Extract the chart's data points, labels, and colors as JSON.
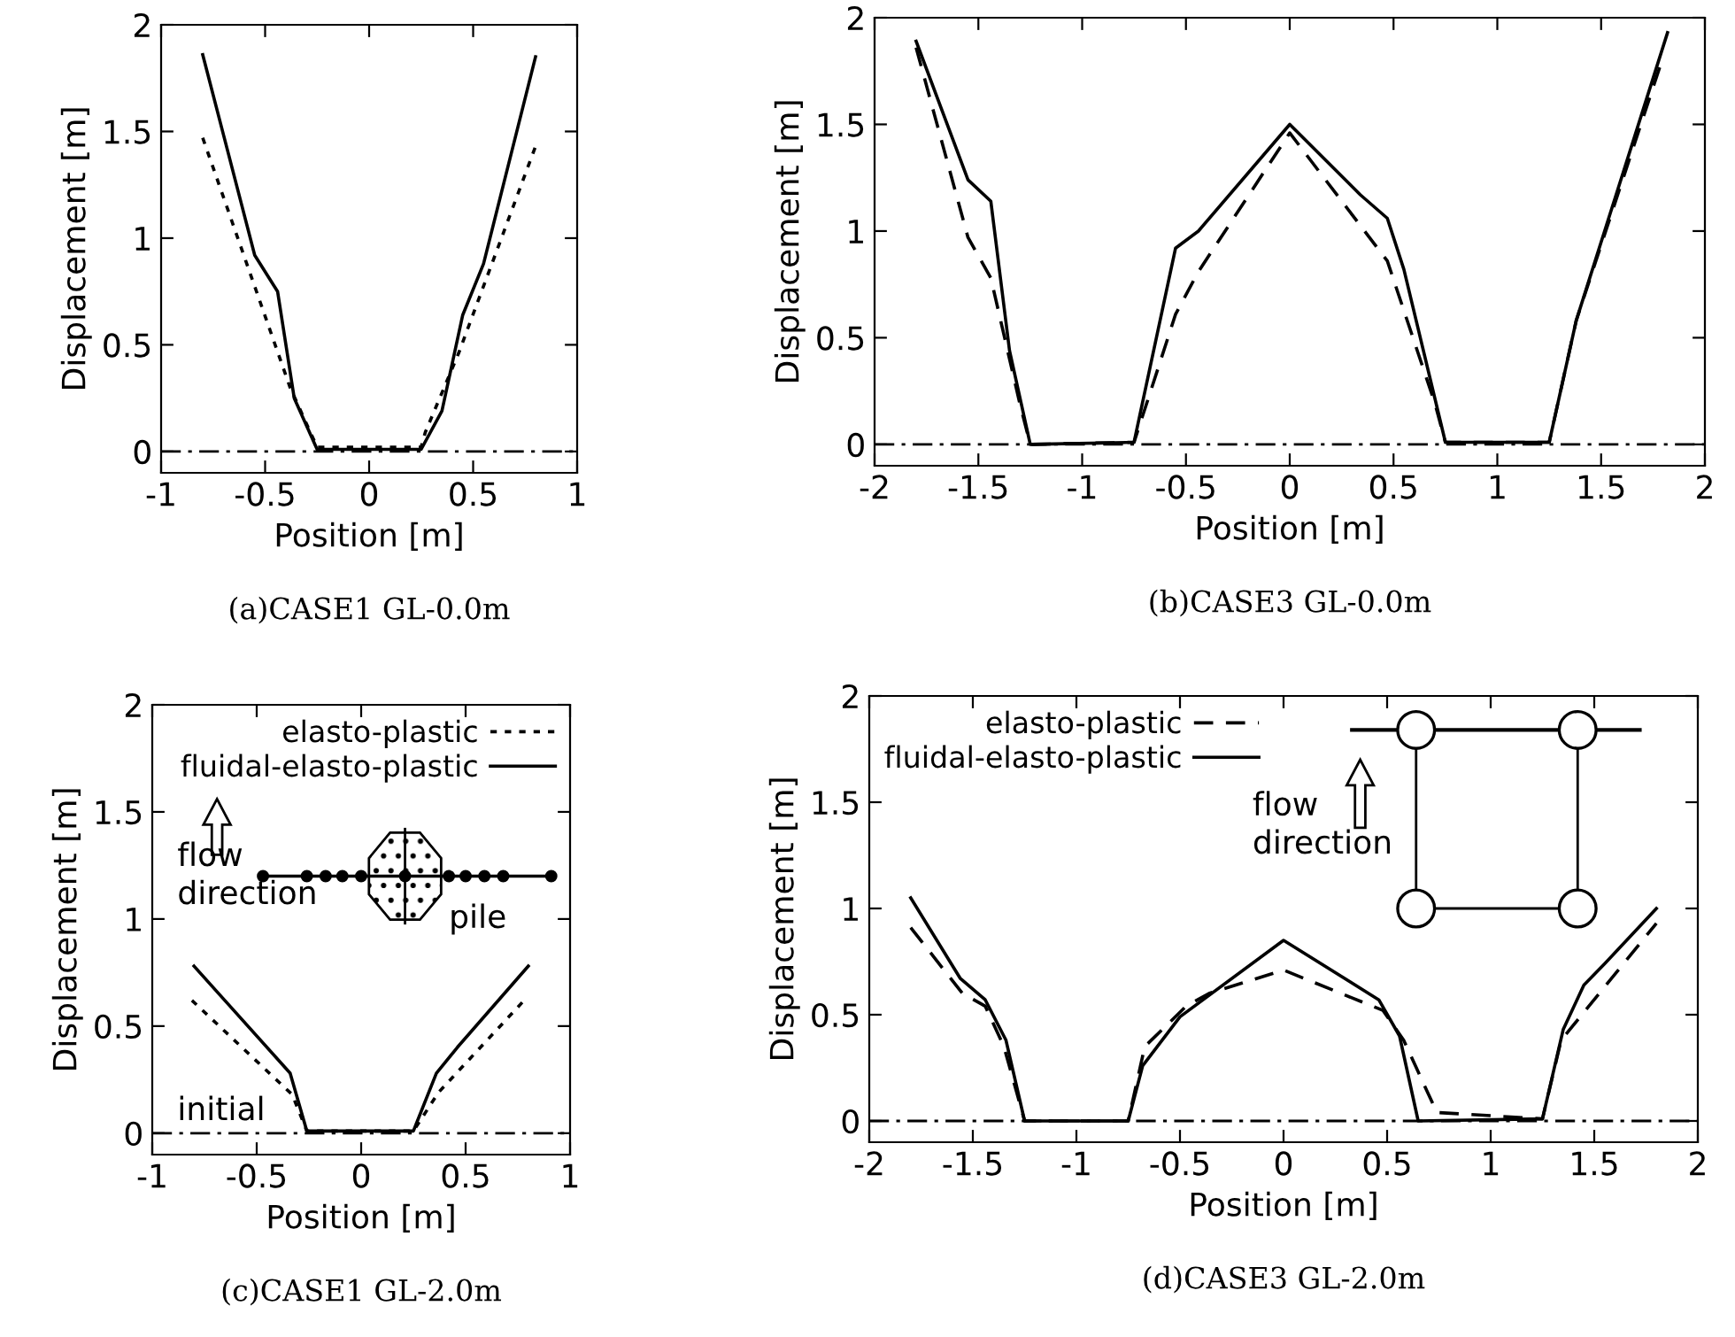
{
  "chart_data": [
    {
      "type": "line",
      "title": "(a)CASE1 GL-0.0m",
      "xlabel": "Position [m]",
      "ylabel": "Displacement [m]",
      "xlim": [
        -1,
        1
      ],
      "xticks": [
        -1,
        -0.5,
        0,
        0.5,
        1
      ],
      "ylim": [
        -0.1,
        2
      ],
      "yticks": [
        0,
        0.5,
        1,
        1.5,
        2
      ],
      "grid": false,
      "legend": false,
      "series": [
        {
          "color": "#000000",
          "line_style": "solid",
          "x": [
            -0.8,
            -0.55,
            -0.44,
            -0.36,
            -0.25,
            0.25,
            0.35,
            0.45,
            0.55,
            0.8
          ],
          "values": [
            1.86,
            0.92,
            0.75,
            0.25,
            0.01,
            0.01,
            0.19,
            0.64,
            0.88,
            1.85
          ]
        },
        {
          "color": "#000000",
          "line_style": "dotted",
          "x": [
            -0.8,
            -0.38,
            -0.25,
            0.25,
            0.27,
            0.43,
            0.8
          ],
          "values": [
            1.47,
            0.3,
            0.02,
            0.02,
            0.09,
            0.46,
            1.43
          ]
        }
      ],
      "ref_lines": [
        {
          "axis": "y",
          "value": 0,
          "color": "#000000",
          "line_style": "dashdot"
        }
      ]
    },
    {
      "type": "line",
      "title": "(b)CASE3 GL-0.0m",
      "xlabel": "Position [m]",
      "ylabel": "Displacement [m]",
      "xlim": [
        -2,
        2
      ],
      "xticks": [
        -2,
        -1.5,
        -1,
        -0.5,
        0,
        0.5,
        1,
        1.5,
        2
      ],
      "ylim": [
        -0.1,
        2
      ],
      "yticks": [
        0,
        0.5,
        1,
        1.5,
        2
      ],
      "grid": false,
      "legend": false,
      "series": [
        {
          "color": "#000000",
          "line_style": "solid",
          "x": [
            -1.8,
            -1.55,
            -1.44,
            -1.35,
            -1.25,
            -0.75,
            -0.55,
            -0.44,
            0,
            0.34,
            0.47,
            0.55,
            0.75,
            1.25,
            1.38,
            1.82
          ],
          "values": [
            1.89,
            1.24,
            1.14,
            0.44,
            0,
            0.01,
            0.92,
            1.0,
            1.5,
            1.17,
            1.06,
            0.82,
            0.01,
            0.01,
            0.58,
            1.93
          ]
        },
        {
          "color": "#000000",
          "line_style": "dashed",
          "x": [
            -1.8,
            -1.55,
            -1.44,
            -1.3,
            -1.25,
            -0.75,
            -0.55,
            -0.44,
            0,
            0.47,
            0.7,
            0.75,
            1.25,
            1.38,
            1.8
          ],
          "values": [
            1.86,
            0.97,
            0.78,
            0.19,
            0,
            0.01,
            0.61,
            0.81,
            1.46,
            0.86,
            0.19,
            0.01,
            0.01,
            0.58,
            1.82
          ]
        }
      ],
      "ref_lines": [
        {
          "axis": "y",
          "value": 0,
          "color": "#000000",
          "line_style": "dashdot"
        }
      ]
    },
    {
      "type": "line",
      "title": "(c)CASE1 GL-2.0m",
      "xlabel": "Position [m]",
      "ylabel": "Displacement [m]",
      "xlim": [
        -1,
        1
      ],
      "xticks": [
        -1,
        -0.5,
        0,
        0.5,
        1
      ],
      "ylim": [
        -0.1,
        2
      ],
      "yticks": [
        0,
        0.5,
        1,
        1.5,
        2
      ],
      "grid": false,
      "legend": "top right",
      "series": [
        {
          "name": "elasto-plastic",
          "color": "#000000",
          "line_style": "dotted",
          "x": [
            -0.81,
            -0.33,
            -0.26,
            0.25,
            0.37,
            0.78
          ],
          "values": [
            0.62,
            0.18,
            0.01,
            0.01,
            0.19,
            0.62
          ]
        },
        {
          "name": "fluidal-elasto-plastic",
          "color": "#000000",
          "line_style": "solid",
          "x": [
            -0.8,
            -0.34,
            -0.26,
            0.25,
            0.36,
            0.46,
            0.8
          ],
          "values": [
            0.78,
            0.28,
            0.01,
            0.01,
            0.28,
            0.4,
            0.78
          ]
        }
      ],
      "ref_lines": [
        {
          "axis": "y",
          "value": 0,
          "color": "#000000",
          "line_style": "dashdot",
          "label": "initial"
        }
      ],
      "annotations": [
        "flow\ndirection",
        "pile"
      ]
    },
    {
      "type": "line",
      "title": "(d)CASE3 GL-2.0m",
      "xlabel": "Position [m]",
      "ylabel": "Displacement [m]",
      "xlim": [
        -2,
        2
      ],
      "xticks": [
        -2,
        -1.5,
        -1,
        -0.5,
        0,
        0.5,
        1,
        1.5,
        2
      ],
      "ylim": [
        -0.1,
        2
      ],
      "yticks": [
        0,
        0.5,
        1,
        1.5,
        2
      ],
      "grid": false,
      "legend": "top left",
      "series": [
        {
          "name": "elasto-plastic",
          "color": "#000000",
          "line_style": "dashed",
          "x": [
            -1.8,
            -1.55,
            -1.44,
            -1.35,
            -1.25,
            -0.75,
            -0.67,
            -0.47,
            -0.36,
            0,
            0.48,
            0.58,
            0.74,
            1.25,
            1.34,
            1.8
          ],
          "values": [
            0.91,
            0.6,
            0.54,
            0.35,
            0,
            0,
            0.35,
            0.54,
            0.6,
            0.71,
            0.52,
            0.38,
            0.04,
            0.01,
            0.38,
            0.93
          ]
        },
        {
          "name": "fluidal-elasto-plastic",
          "color": "#000000",
          "line_style": "solid",
          "x": [
            -1.8,
            -1.56,
            -1.44,
            -1.34,
            -1.25,
            -0.75,
            -0.68,
            -0.5,
            0,
            0.46,
            0.56,
            0.65,
            1.25,
            1.35,
            1.45,
            1.55,
            1.8
          ],
          "values": [
            1.05,
            0.67,
            0.57,
            0.38,
            0,
            0,
            0.26,
            0.49,
            0.85,
            0.57,
            0.4,
            0,
            0.01,
            0.43,
            0.64,
            0.74,
            1.0
          ]
        }
      ],
      "ref_lines": [
        {
          "axis": "y",
          "value": 0,
          "color": "#000000",
          "line_style": "dashdot"
        }
      ],
      "annotations": [
        "flow\ndirection"
      ]
    }
  ]
}
